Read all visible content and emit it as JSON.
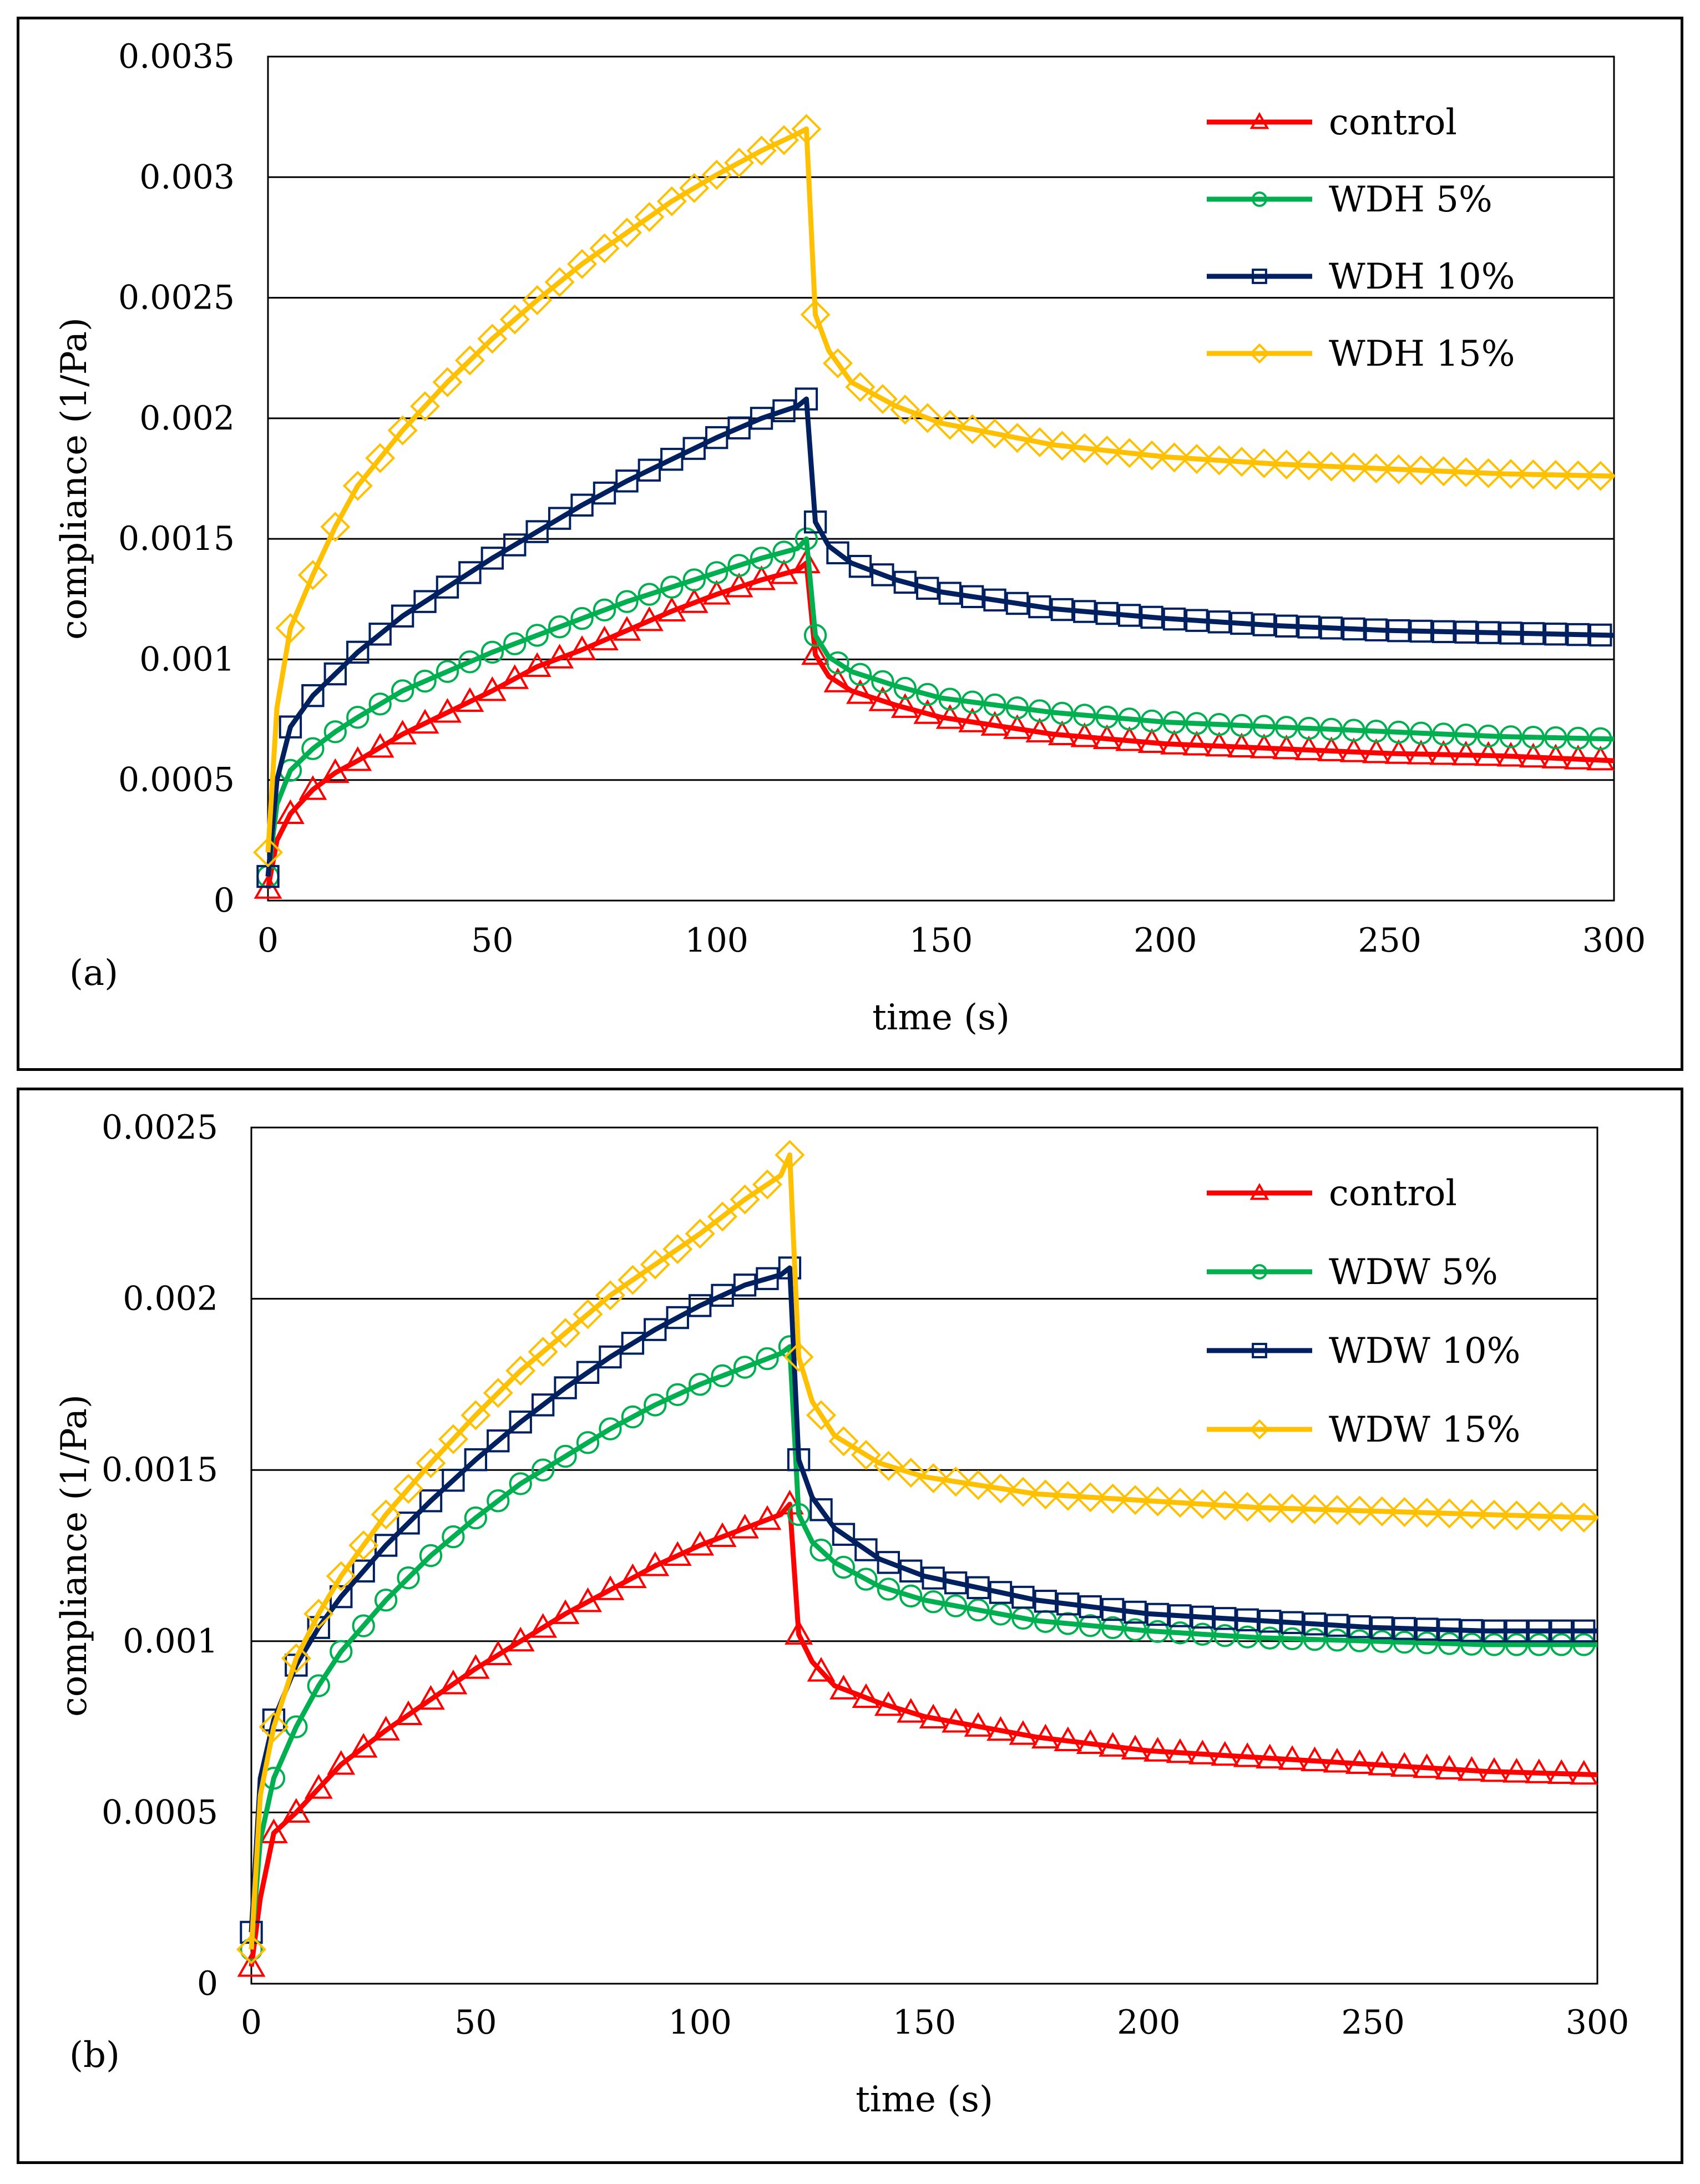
{
  "chart_data": [
    {
      "type": "line",
      "panel_label": "(a)",
      "xlabel": "time (s)",
      "ylabel": "compliance (1/Pa)",
      "xlim": [
        0,
        300
      ],
      "ylim": [
        0,
        0.0035
      ],
      "xticks": [
        "0",
        "50",
        "100",
        "150",
        "200",
        "250",
        "300"
      ],
      "yticks": [
        "0",
        "0.0005",
        "0.001",
        "0.0015",
        "0.002",
        "0.0025",
        "0.003",
        "0.0035"
      ],
      "grid": "horizontal",
      "legend_position": "top-right",
      "series": [
        {
          "name": "control",
          "color": "#ff0000",
          "marker": "triangle",
          "creep": {
            "t": [
              0,
              2,
              5,
              10,
              15,
              20,
              30,
              40,
              50,
              60,
              70,
              80,
              90,
              100,
              110,
              118,
              120
            ],
            "c": [
              5e-05,
              0.00025,
              0.00036,
              0.00046,
              0.00053,
              0.00058,
              0.00069,
              0.00078,
              0.00087,
              0.00097,
              0.00104,
              0.00112,
              0.0012,
              0.00127,
              0.00133,
              0.00137,
              0.0014
            ]
          },
          "recovery": {
            "t": [
              120,
              122,
              125,
              130,
              140,
              150,
              175,
              200,
              225,
              250,
              275,
              300
            ],
            "c": [
              0.0014,
              0.00102,
              0.00093,
              0.00087,
              0.00081,
              0.00076,
              0.00069,
              0.00065,
              0.00063,
              0.00061,
              0.0006,
              0.00058
            ]
          }
        },
        {
          "name": "WDH 5%",
          "color": "#00b050",
          "marker": "circle",
          "creep": {
            "t": [
              0,
              2,
              5,
              10,
              15,
              20,
              30,
              40,
              50,
              60,
              70,
              80,
              90,
              100,
              110,
              118,
              120
            ],
            "c": [
              0.0001,
              0.0004,
              0.00054,
              0.00063,
              0.0007,
              0.00076,
              0.00087,
              0.00095,
              0.00103,
              0.0011,
              0.00117,
              0.00124,
              0.0013,
              0.00136,
              0.00142,
              0.00146,
              0.0015
            ]
          },
          "recovery": {
            "t": [
              120,
              122,
              125,
              130,
              140,
              150,
              175,
              200,
              225,
              250,
              275,
              300
            ],
            "c": [
              0.0015,
              0.0011,
              0.00101,
              0.00095,
              0.00089,
              0.00084,
              0.00078,
              0.00074,
              0.00072,
              0.0007,
              0.00068,
              0.00067
            ]
          }
        },
        {
          "name": "WDH 10%",
          "color": "#002060",
          "marker": "square",
          "creep": {
            "t": [
              0,
              2,
              5,
              10,
              15,
              20,
              30,
              40,
              50,
              60,
              70,
              80,
              90,
              100,
              110,
              118,
              120
            ],
            "c": [
              0.0001,
              0.0005,
              0.00072,
              0.00085,
              0.00094,
              0.00103,
              0.00118,
              0.0013,
              0.00142,
              0.00153,
              0.00164,
              0.00174,
              0.00183,
              0.00192,
              0.002,
              0.00205,
              0.00208
            ]
          },
          "recovery": {
            "t": [
              120,
              122,
              125,
              130,
              140,
              150,
              175,
              200,
              225,
              250,
              275,
              300
            ],
            "c": [
              0.00208,
              0.00157,
              0.00147,
              0.0014,
              0.00133,
              0.00128,
              0.00121,
              0.00117,
              0.00114,
              0.00112,
              0.00111,
              0.0011
            ]
          }
        },
        {
          "name": "WDH 15%",
          "color": "#ffc000",
          "marker": "diamond",
          "creep": {
            "t": [
              0,
              2,
              5,
              10,
              15,
              20,
              30,
              40,
              50,
              60,
              70,
              80,
              90,
              100,
              110,
              118,
              120
            ],
            "c": [
              0.0002,
              0.0008,
              0.00113,
              0.00135,
              0.00155,
              0.00172,
              0.00195,
              0.00215,
              0.00233,
              0.00249,
              0.00264,
              0.00277,
              0.0029,
              0.00301,
              0.00311,
              0.00318,
              0.0032
            ]
          },
          "recovery": {
            "t": [
              120,
              122,
              125,
              130,
              140,
              150,
              175,
              200,
              225,
              250,
              275,
              300
            ],
            "c": [
              0.0032,
              0.00243,
              0.00228,
              0.00215,
              0.00205,
              0.00198,
              0.00189,
              0.00184,
              0.00181,
              0.00179,
              0.00177,
              0.00176
            ]
          }
        }
      ]
    },
    {
      "type": "line",
      "panel_label": "(b)",
      "xlabel": "time (s)",
      "ylabel": "compliance (1/Pa)",
      "xlim": [
        0,
        300
      ],
      "ylim": [
        0,
        0.0025
      ],
      "xticks": [
        "0",
        "50",
        "100",
        "150",
        "200",
        "250",
        "300"
      ],
      "yticks": [
        "0",
        "0.0005",
        "0.001",
        "0.0015",
        "0.002",
        "0.0025"
      ],
      "grid": "horizontal",
      "legend_position": "top-right",
      "series": [
        {
          "name": "control",
          "color": "#ff0000",
          "marker": "triangle",
          "creep": {
            "t": [
              0,
              2,
              5,
              10,
              15,
              20,
              30,
              40,
              50,
              60,
              70,
              80,
              90,
              100,
              110,
              118,
              120
            ],
            "c": [
              5e-05,
              0.00025,
              0.00044,
              0.0005,
              0.00057,
              0.00064,
              0.00074,
              0.00083,
              0.00092,
              0.001,
              0.00108,
              0.00115,
              0.00122,
              0.00128,
              0.00133,
              0.00137,
              0.0014
            ]
          },
          "recovery": {
            "t": [
              120,
              122,
              125,
              130,
              140,
              150,
              175,
              200,
              225,
              250,
              275,
              300
            ],
            "c": [
              0.0014,
              0.00102,
              0.00094,
              0.00087,
              0.00082,
              0.00078,
              0.00072,
              0.00068,
              0.00066,
              0.00064,
              0.00062,
              0.00061
            ]
          }
        },
        {
          "name": "WDW 5%",
          "color": "#00b050",
          "marker": "circle",
          "creep": {
            "t": [
              0,
              2,
              5,
              10,
              15,
              20,
              30,
              40,
              50,
              60,
              70,
              80,
              90,
              100,
              110,
              118,
              120
            ],
            "c": [
              0.0001,
              0.00042,
              0.0006,
              0.00075,
              0.00087,
              0.00097,
              0.00112,
              0.00125,
              0.00136,
              0.00146,
              0.00154,
              0.00162,
              0.00169,
              0.00175,
              0.0018,
              0.00184,
              0.00186
            ]
          },
          "recovery": {
            "t": [
              120,
              122,
              125,
              130,
              140,
              150,
              175,
              200,
              225,
              250,
              275,
              300
            ],
            "c": [
              0.00186,
              0.00137,
              0.00129,
              0.00123,
              0.00116,
              0.00112,
              0.00106,
              0.00103,
              0.00101,
              0.001,
              0.00099,
              0.00099
            ]
          }
        },
        {
          "name": "WDW 10%",
          "color": "#002060",
          "marker": "square",
          "creep": {
            "t": [
              0,
              2,
              5,
              10,
              15,
              20,
              30,
              40,
              50,
              60,
              70,
              80,
              90,
              100,
              110,
              118,
              120
            ],
            "c": [
              0.00015,
              0.0006,
              0.00077,
              0.00093,
              0.00104,
              0.00113,
              0.00128,
              0.00141,
              0.00153,
              0.00164,
              0.00174,
              0.00183,
              0.00191,
              0.00198,
              0.00204,
              0.00207,
              0.00209
            ]
          },
          "recovery": {
            "t": [
              120,
              122,
              125,
              130,
              140,
              150,
              175,
              200,
              225,
              250,
              275,
              300
            ],
            "c": [
              0.00209,
              0.00153,
              0.00142,
              0.00133,
              0.00124,
              0.00119,
              0.00112,
              0.00108,
              0.00106,
              0.00104,
              0.00103,
              0.00103
            ]
          }
        },
        {
          "name": "WDW 15%",
          "color": "#ffc000",
          "marker": "diamond",
          "creep": {
            "t": [
              0,
              2,
              5,
              10,
              15,
              20,
              30,
              40,
              50,
              60,
              70,
              80,
              90,
              100,
              110,
              118,
              120
            ],
            "c": [
              0.0001,
              0.00055,
              0.00075,
              0.00095,
              0.00108,
              0.00119,
              0.00137,
              0.00152,
              0.00166,
              0.00179,
              0.0019,
              0.00201,
              0.0021,
              0.00219,
              0.00229,
              0.00236,
              0.00242
            ]
          },
          "recovery": {
            "t": [
              120,
              122,
              125,
              130,
              140,
              150,
              175,
              200,
              225,
              250,
              275,
              300
            ],
            "c": [
              0.00242,
              0.00183,
              0.0017,
              0.0016,
              0.00152,
              0.00148,
              0.00143,
              0.00141,
              0.00139,
              0.00138,
              0.00137,
              0.00136
            ]
          }
        }
      ]
    }
  ]
}
